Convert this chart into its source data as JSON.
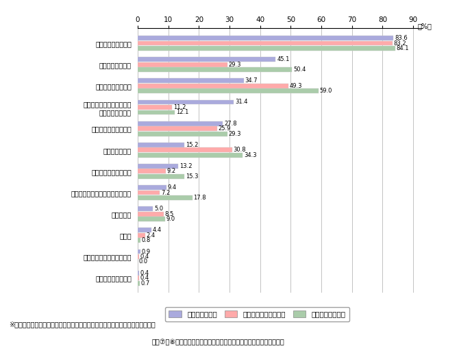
{
  "categories": [
    "特にメリットは無い",
    "メリットはよく分からない",
    "その他",
    "売上の拡大",
    "経営分析・経営戦略立案の高度化",
    "取引先との協業の促進",
    "顧客満足の向上",
    "ペーパーレス化の促進",
    "情報システムが導入可能に\nなった業務がある",
    "従業員の労力の軽減",
    "業務コストの削減",
    "業務スピードの向上"
  ],
  "broadband": [
    0.4,
    0.9,
    4.4,
    5.0,
    9.4,
    13.2,
    15.2,
    27.8,
    31.4,
    34.7,
    45.1,
    83.6
  ],
  "mobile": [
    0.4,
    0.4,
    2.4,
    8.5,
    7.2,
    9.2,
    30.8,
    25.9,
    11.2,
    49.3,
    29.3,
    83.2
  ],
  "ubiquitous": [
    0.7,
    0.0,
    0.8,
    9.0,
    17.8,
    15.3,
    34.3,
    29.3,
    12.1,
    59.0,
    50.4,
    84.1
  ],
  "color_broadband": "#aaaadd",
  "color_mobile": "#ffaaaa",
  "color_ubiquitous": "#aaccaa",
  "xticks": [
    0,
    10,
    20,
    30,
    40,
    50,
    60,
    70,
    80,
    90
  ],
  "legend_broadband": "ブロードバンド",
  "legend_mobile": "モバイルネットワーク",
  "legend_ubiquitous": "ユビキタスツール",
  "footnote1": "※　各ネットワーク環境を導入済み・導入検討中の事業者向け企業における比率",
  "footnote2": "図表⑦、⑧　（出典）「企業のユビキタスネットワーク利用動向調査」"
}
